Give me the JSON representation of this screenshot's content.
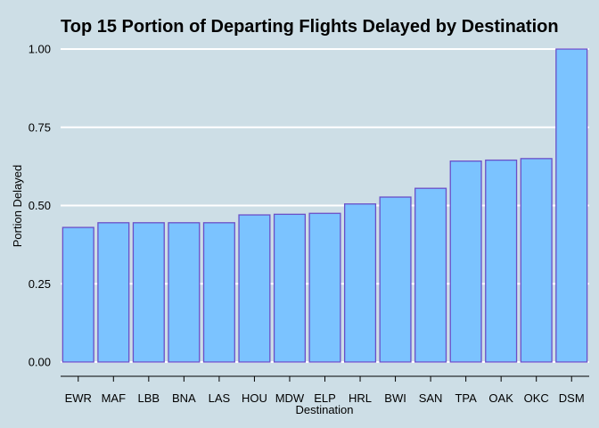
{
  "chart_data": {
    "type": "bar",
    "title": "Top 15 Portion of Departing Flights Delayed by Destination",
    "xlabel": "Destination",
    "ylabel": "Portion Delayed",
    "categories": [
      "EWR",
      "MAF",
      "LBB",
      "BNA",
      "LAS",
      "HOU",
      "MDW",
      "ELP",
      "HRL",
      "BWI",
      "SAN",
      "TPA",
      "OAK",
      "OKC",
      "DSM"
    ],
    "values": [
      0.43,
      0.445,
      0.445,
      0.445,
      0.445,
      0.47,
      0.472,
      0.475,
      0.505,
      0.527,
      0.555,
      0.642,
      0.645,
      0.65,
      1.0
    ],
    "ylim": [
      0,
      1.0
    ],
    "yticks": [
      "0.00",
      "0.25",
      "0.50",
      "0.75",
      "1.00"
    ],
    "grid": "horizontal",
    "colors": {
      "background": "#cddee6",
      "bar_fill": "#7bc3ff",
      "bar_stroke": "#6a4fc8",
      "grid": "#ffffff"
    }
  }
}
